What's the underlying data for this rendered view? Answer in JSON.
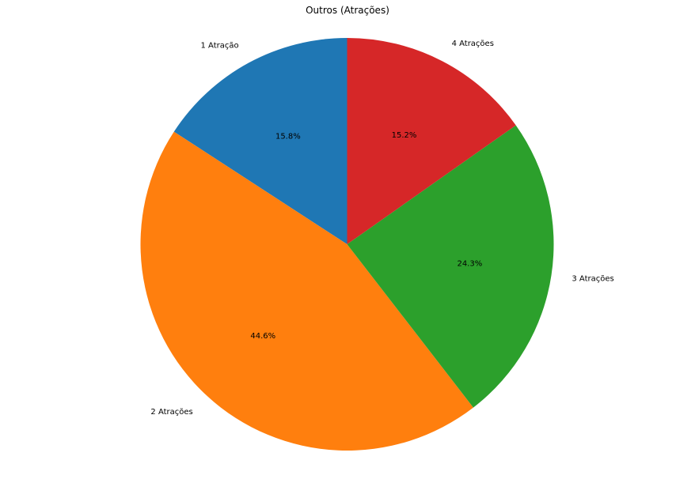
{
  "chart_data": {
    "type": "pie",
    "title": "Outros (Atrações)",
    "categories": [
      "1 Atração",
      "2 Atrações",
      "3 Atrações",
      "4 Atrações"
    ],
    "values": [
      15.8,
      44.6,
      24.3,
      15.2
    ],
    "pct_labels": [
      "15.8%",
      "44.6%",
      "24.3%",
      "15.2%"
    ],
    "colors": [
      "#1f77b4",
      "#ff7f0e",
      "#2ca02c",
      "#d62728"
    ],
    "start_angle_deg": 90,
    "direction": "counterclockwise"
  }
}
